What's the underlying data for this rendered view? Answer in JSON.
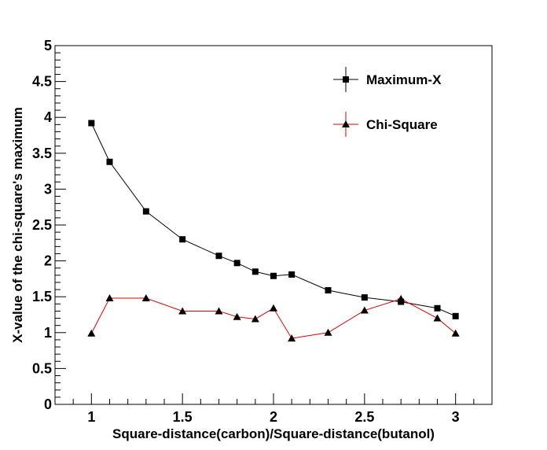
{
  "chart_data": {
    "type": "line",
    "title": "",
    "xlabel": "Square-distance(carbon)/Square-distance(butanol)",
    "ylabel": "X-value of the chi-square's maximum",
    "xlim": [
      0.8,
      3.2
    ],
    "ylim": [
      0,
      5
    ],
    "x_ticks": [
      "1",
      "1.5",
      "2",
      "2.5",
      "3"
    ],
    "y_ticks": [
      "0",
      "0.5",
      "1",
      "1.5",
      "2",
      "2.5",
      "3",
      "3.5",
      "4",
      "4.5",
      "5"
    ],
    "grid": false,
    "legend_position": "top-right",
    "series": [
      {
        "name": "Maximum-X",
        "color": "#000000",
        "marker": "square",
        "x": [
          1.0,
          1.1,
          1.3,
          1.5,
          1.7,
          1.8,
          1.9,
          2.0,
          2.1,
          2.3,
          2.5,
          2.7,
          2.9,
          3.0
        ],
        "y": [
          3.92,
          3.38,
          2.69,
          2.3,
          2.07,
          1.97,
          1.85,
          1.79,
          1.81,
          1.59,
          1.49,
          1.43,
          1.34,
          1.23
        ]
      },
      {
        "name": "Chi-Square",
        "color": "#e00000",
        "marker": "triangle",
        "x": [
          1.0,
          1.1,
          1.3,
          1.5,
          1.7,
          1.8,
          1.9,
          2.0,
          2.1,
          2.3,
          2.5,
          2.7,
          2.9,
          3.0
        ],
        "y": [
          0.99,
          1.48,
          1.48,
          1.3,
          1.3,
          1.22,
          1.19,
          1.34,
          0.92,
          1.0,
          1.31,
          1.47,
          1.2,
          0.99
        ]
      }
    ]
  }
}
